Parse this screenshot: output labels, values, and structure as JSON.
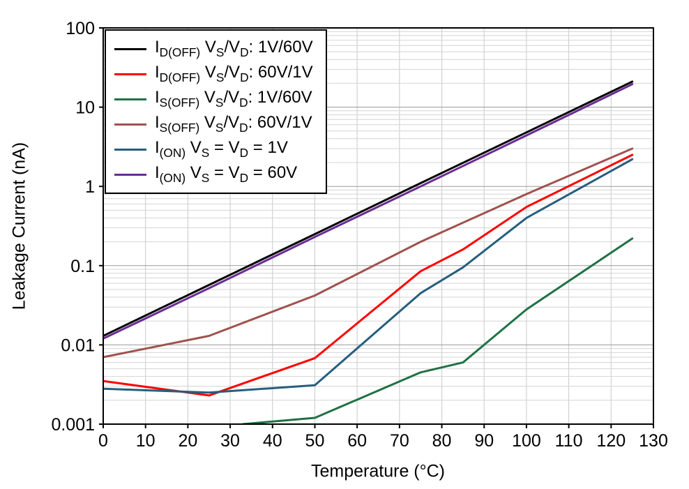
{
  "chart_data": {
    "type": "line",
    "title": "",
    "xlabel": "Temperature (°C)",
    "ylabel": "Leakage Current (nA)",
    "xlim": [
      0,
      130
    ],
    "xticks": [
      0,
      10,
      20,
      30,
      40,
      50,
      60,
      70,
      80,
      90,
      100,
      110,
      120,
      130
    ],
    "ylim": [
      0.001,
      100
    ],
    "yscale": "log",
    "yticks": [
      {
        "v": 100,
        "label": "100"
      },
      {
        "v": 10,
        "label": "10"
      },
      {
        "v": 1,
        "label": "1"
      },
      {
        "v": 0.1,
        "label": "0.1"
      },
      {
        "v": 0.01,
        "label": "0.01"
      },
      {
        "v": 0.001,
        "label": "0.001"
      }
    ],
    "grid": "major and minor log gridlines on, light gray",
    "legend_position": "top-left inside plot, boxed",
    "series": [
      {
        "name": "ID(OFF) VS/VD: 1V/60V",
        "label_parts": [
          [
            "I",
            ""
          ],
          [
            "D(OFF)",
            "sub"
          ],
          [
            " V",
            ""
          ],
          [
            "S",
            "sub"
          ],
          [
            "/V",
            ""
          ],
          [
            "D",
            "sub"
          ],
          [
            ": 1V/60V",
            ""
          ]
        ],
        "color": "#000000",
        "x": [
          0,
          25,
          50,
          75,
          100,
          125
        ],
        "y": [
          0.013,
          0.057,
          0.25,
          1.1,
          4.8,
          21
        ]
      },
      {
        "name": "ID(OFF) VS/VD: 60V/1V",
        "label_parts": [
          [
            "I",
            ""
          ],
          [
            "D(OFF)",
            "sub"
          ],
          [
            " V",
            ""
          ],
          [
            "S",
            "sub"
          ],
          [
            "/V",
            ""
          ],
          [
            "D",
            "sub"
          ],
          [
            ": 60V/1V",
            ""
          ]
        ],
        "color": "#ff0000",
        "x": [
          0,
          25,
          50,
          75,
          85,
          100,
          125
        ],
        "y": [
          0.0035,
          0.0023,
          0.0068,
          0.085,
          0.16,
          0.55,
          2.5
        ]
      },
      {
        "name": "IS(OFF) VS/VD: 1V/60V",
        "label_parts": [
          [
            "I",
            ""
          ],
          [
            "S(OFF)",
            "sub"
          ],
          [
            " V",
            ""
          ],
          [
            "S",
            "sub"
          ],
          [
            "/V",
            ""
          ],
          [
            "D",
            "sub"
          ],
          [
            ": 1V/60V",
            ""
          ]
        ],
        "color": "#1f7145",
        "x": [
          33,
          50,
          75,
          85,
          100,
          125
        ],
        "y": [
          0.001,
          0.0012,
          0.0045,
          0.006,
          0.028,
          0.22
        ]
      },
      {
        "name": "IS(OFF) VS/VD: 60V/1V",
        "label_parts": [
          [
            "I",
            ""
          ],
          [
            "S(OFF)",
            "sub"
          ],
          [
            " V",
            ""
          ],
          [
            "S",
            "sub"
          ],
          [
            "/V",
            ""
          ],
          [
            "D",
            "sub"
          ],
          [
            ": 60V/1V",
            ""
          ]
        ],
        "color": "#a0524d",
        "x": [
          0,
          25,
          50,
          75,
          100,
          125
        ],
        "y": [
          0.007,
          0.013,
          0.042,
          0.2,
          0.8,
          3.0
        ]
      },
      {
        "name": "I(ON) VS = VD = 1V",
        "label_parts": [
          [
            "I",
            ""
          ],
          [
            "(ON)",
            "sub"
          ],
          [
            " V",
            ""
          ],
          [
            "S",
            "sub"
          ],
          [
            " = V",
            ""
          ],
          [
            "D",
            "sub"
          ],
          [
            " = 1V",
            ""
          ]
        ],
        "color": "#255e7e",
        "x": [
          0,
          25,
          50,
          75,
          85,
          100,
          125
        ],
        "y": [
          0.0028,
          0.0025,
          0.0031,
          0.045,
          0.095,
          0.4,
          2.2
        ]
      },
      {
        "name": "I(ON) VS = VD = 60V",
        "label_parts": [
          [
            "I",
            ""
          ],
          [
            "(ON)",
            "sub"
          ],
          [
            " V",
            ""
          ],
          [
            "S",
            "sub"
          ],
          [
            " = V",
            ""
          ],
          [
            "D",
            "sub"
          ],
          [
            " = 60V",
            ""
          ]
        ],
        "color": "#6a2c93",
        "x": [
          0,
          25,
          50,
          75,
          100,
          125
        ],
        "y": [
          0.012,
          0.052,
          0.23,
          1.0,
          4.4,
          19.5
        ]
      }
    ],
    "style": {
      "frame_color": "#000000",
      "grid_major_color": "#9a9a9a",
      "grid_minor_color": "#d4d4d4",
      "grid_vertical_color": "#c9c9c9",
      "plot_bg": "#ffffff"
    }
  }
}
